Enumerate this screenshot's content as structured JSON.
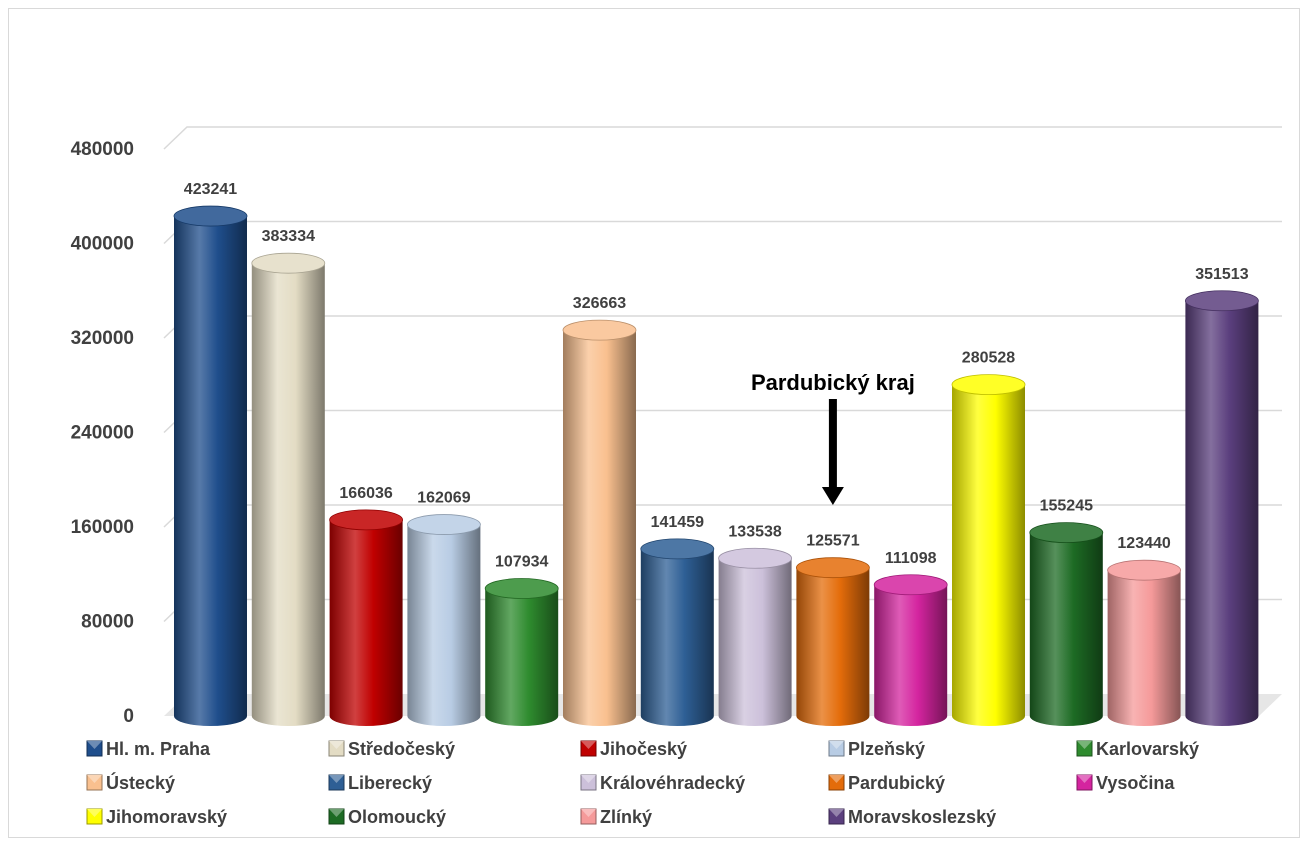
{
  "chart_data": {
    "type": "bar",
    "style": "3d-cylinder",
    "categories": [
      "Hl. m. Praha",
      "Středočeský",
      "Jihočeský",
      "Plzeňský",
      "Karlovarský",
      "Ústecký",
      "Liberecký",
      "Královéhradecký",
      "Pardubický",
      "Vysočina",
      "Jihomoravský",
      "Olomoucký",
      "Zlínký",
      "Moravskoslezský"
    ],
    "values": [
      423241,
      383334,
      166036,
      162069,
      107934,
      326663,
      141459,
      133538,
      125571,
      111098,
      280528,
      155245,
      123440,
      351513
    ],
    "colors": [
      "#1f4e8c",
      "#e3dcc4",
      "#c00000",
      "#b8cce4",
      "#2e8b2e",
      "#f9c08f",
      "#2e5f95",
      "#ccc0da",
      "#e46c0a",
      "#d4249f",
      "#ffff00",
      "#1d6b24",
      "#f59a9a",
      "#5b3f7e"
    ],
    "ylim": [
      0,
      480000
    ],
    "yticks": [
      0,
      80000,
      160000,
      240000,
      320000,
      400000,
      480000
    ],
    "grid": true,
    "legend_position": "bottom",
    "annotation": {
      "text": "Pardubický kraj",
      "target_category": "Pardubický"
    },
    "title": "",
    "xlabel": "",
    "ylabel": ""
  }
}
